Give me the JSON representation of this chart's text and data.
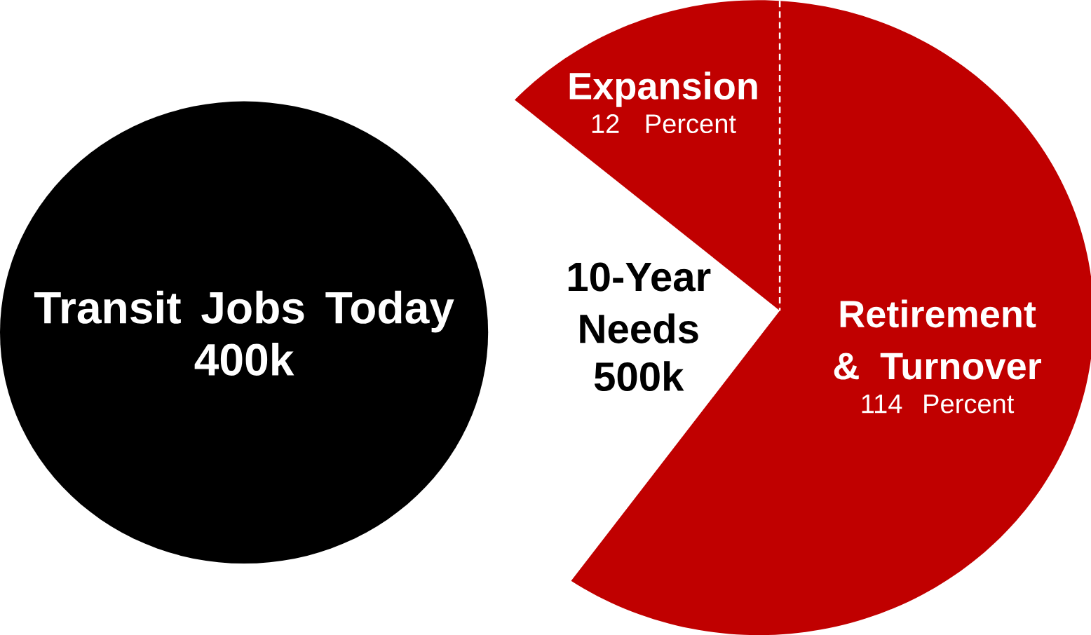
{
  "chart_data": {
    "type": "other",
    "categories": [
      "Transit Jobs Today",
      "10-Year Needs",
      "Expansion",
      "Retirement & Turnover"
    ],
    "values": [
      400,
      500,
      12,
      114
    ],
    "value_labels": [
      "400k",
      "500k",
      "12  Percent",
      "114 Percent"
    ],
    "colors": [
      "#000000",
      "#ffffff",
      "#c00000",
      "#c00000"
    ]
  }
}
